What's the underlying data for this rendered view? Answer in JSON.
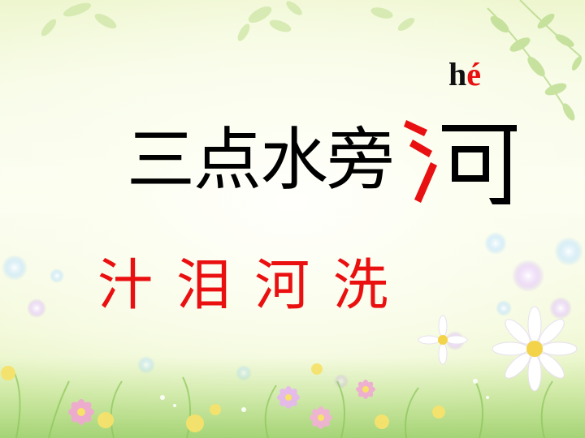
{
  "slide": {
    "pinyin_initial": "h",
    "pinyin_final": "é",
    "title_text": "三点水旁",
    "character": "河",
    "examples": [
      "汁",
      "泪",
      "河",
      "洗"
    ],
    "colors": {
      "title": "#000000",
      "highlight": "#e81010",
      "examples": "#ea1010",
      "background": "#f6fbe4"
    }
  }
}
